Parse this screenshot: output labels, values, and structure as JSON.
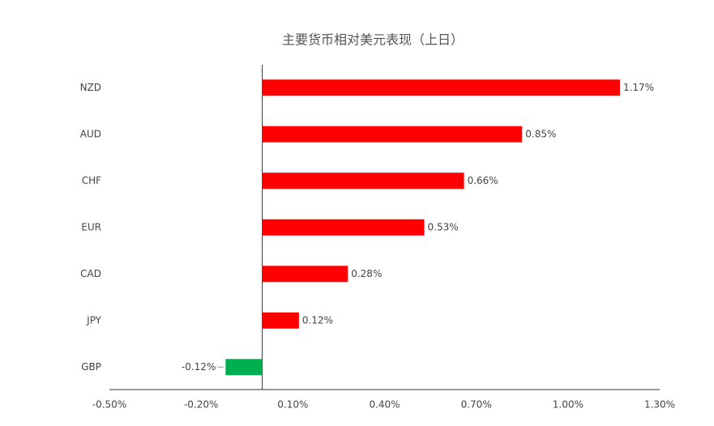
{
  "chart_data": {
    "type": "hbar",
    "title": "主要货币相对美元表现（上日）",
    "categories": [
      "NZD",
      "AUD",
      "CHF",
      "EUR",
      "CAD",
      "JPY",
      "GBP"
    ],
    "values": [
      1.17,
      0.85,
      0.66,
      0.53,
      0.28,
      0.12,
      -0.12
    ],
    "value_labels": [
      "1.17%",
      "0.85%",
      "0.66%",
      "0.53%",
      "0.28%",
      "0.12%",
      "-0.12%"
    ],
    "colors": [
      "#ff0000",
      "#ff0000",
      "#ff0000",
      "#ff0000",
      "#ff0000",
      "#ff0000",
      "#00b050"
    ],
    "xlim": [
      -0.5,
      1.3
    ],
    "xticks": [
      {
        "value": -0.5,
        "label": "-0.50%"
      },
      {
        "value": -0.2,
        "label": "-0.20%"
      },
      {
        "value": 0.1,
        "label": "0.10%"
      },
      {
        "value": 0.4,
        "label": "0.40%"
      },
      {
        "value": 0.7,
        "label": "0.70%"
      },
      {
        "value": 1.0,
        "label": "1.00%"
      },
      {
        "value": 1.3,
        "label": "1.30%"
      }
    ]
  }
}
